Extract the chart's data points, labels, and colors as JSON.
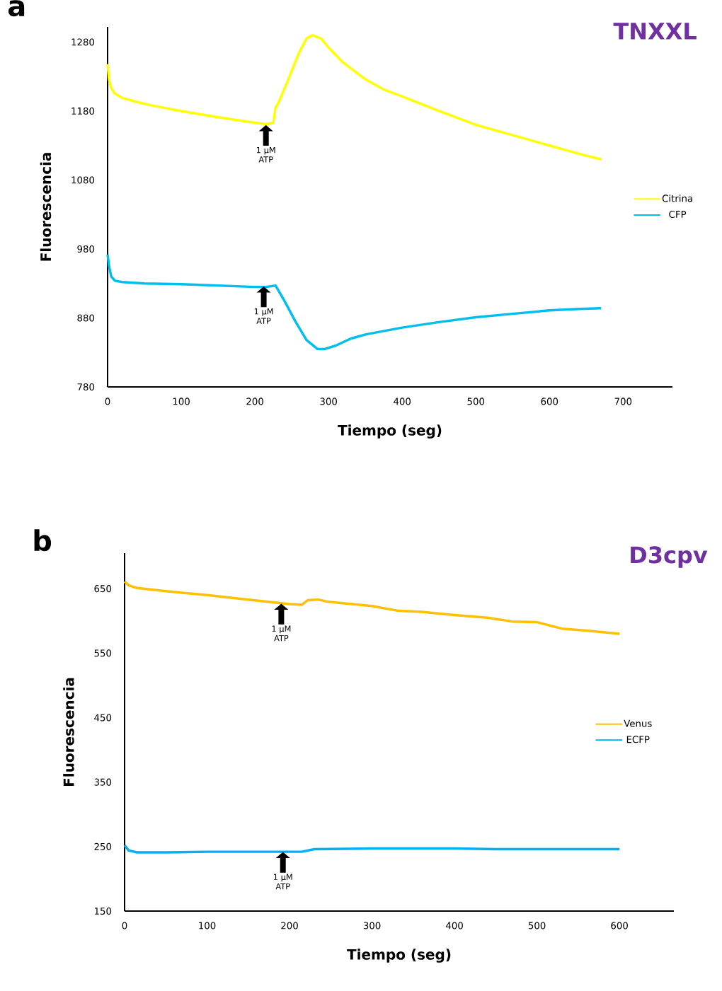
{
  "chart_data": [
    {
      "type": "line",
      "title": "TNXXL",
      "xlabel": "Tiempo (seg)",
      "ylabel": "Fluorescencia",
      "xlim": [
        0,
        767
      ],
      "ylim": [
        780,
        1302
      ],
      "xticks": [
        0,
        100,
        200,
        300,
        400,
        500,
        600,
        700
      ],
      "yticks": [
        780,
        880,
        980,
        1080,
        1180,
        1280
      ],
      "grid": false,
      "legend": "right",
      "marker": "none",
      "line_style": "solid",
      "annotations": [
        "a",
        {
          "text": "1 µM ATP",
          "x": 215,
          "y": 1160
        },
        {
          "text": "1 µM ATP",
          "x": 212,
          "y": 926
        }
      ],
      "series": [
        {
          "name": "Citrina",
          "color": "#ffff00",
          "x": [
            0,
            2,
            5,
            10,
            20,
            40,
            60,
            100,
            150,
            200,
            215,
            225,
            228,
            232,
            245,
            260,
            270,
            278,
            290,
            300,
            320,
            350,
            375,
            400,
            450,
            500,
            550,
            600,
            640,
            670
          ],
          "values": [
            1248,
            1225,
            1213,
            1205,
            1199,
            1193,
            1188,
            1180,
            1171,
            1163,
            1161,
            1163,
            1185,
            1192,
            1225,
            1265,
            1285,
            1290,
            1285,
            1272,
            1250,
            1226,
            1211,
            1201,
            1180,
            1160,
            1145,
            1130,
            1118,
            1110
          ]
        },
        {
          "name": "CFP",
          "color": "#00bfef",
          "x": [
            0,
            2,
            5,
            10,
            20,
            50,
            100,
            150,
            200,
            215,
            228,
            240,
            255,
            270,
            285,
            295,
            310,
            330,
            350,
            400,
            450,
            500,
            550,
            600,
            640,
            670
          ],
          "values": [
            972,
            955,
            940,
            934,
            932,
            930,
            929,
            927,
            925,
            925,
            927,
            905,
            875,
            848,
            835,
            835,
            840,
            850,
            856,
            866,
            874,
            881,
            886,
            891,
            893,
            894
          ]
        }
      ]
    },
    {
      "type": "line",
      "title": "D3cpv",
      "xlabel": "Tiempo (seg)",
      "ylabel": "Fluorescencia",
      "xlim": [
        0,
        666
      ],
      "ylim": [
        150,
        705
      ],
      "xticks": [
        0,
        100,
        200,
        300,
        400,
        500,
        600
      ],
      "yticks": [
        150,
        250,
        350,
        450,
        550,
        650
      ],
      "grid": false,
      "legend": "right",
      "marker": "none",
      "line_style": "solid",
      "annotations": [
        "b",
        {
          "text": "1 µM ATP",
          "x": 190,
          "y": 627
        },
        {
          "text": "1 µM ATP",
          "x": 192,
          "y": 242
        }
      ],
      "series": [
        {
          "name": "Venus",
          "color": "#ffc000",
          "x": [
            0,
            5,
            15,
            50,
            100,
            150,
            200,
            215,
            222,
            235,
            245,
            260,
            300,
            330,
            360,
            400,
            440,
            470,
            500,
            515,
            530,
            560,
            600
          ],
          "values": [
            661,
            655,
            651,
            646,
            640,
            633,
            626,
            625,
            632,
            633,
            630,
            628,
            623,
            616,
            614,
            609,
            605,
            599,
            598,
            593,
            588,
            585,
            580
          ]
        },
        {
          "name": "ECFP",
          "color": "#00b0f0",
          "x": [
            0,
            5,
            15,
            50,
            100,
            150,
            200,
            215,
            230,
            300,
            400,
            450,
            500,
            600
          ],
          "values": [
            252,
            244,
            241,
            241,
            242,
            242,
            242,
            242,
            246,
            247,
            247,
            246,
            246,
            246
          ]
        }
      ]
    }
  ]
}
